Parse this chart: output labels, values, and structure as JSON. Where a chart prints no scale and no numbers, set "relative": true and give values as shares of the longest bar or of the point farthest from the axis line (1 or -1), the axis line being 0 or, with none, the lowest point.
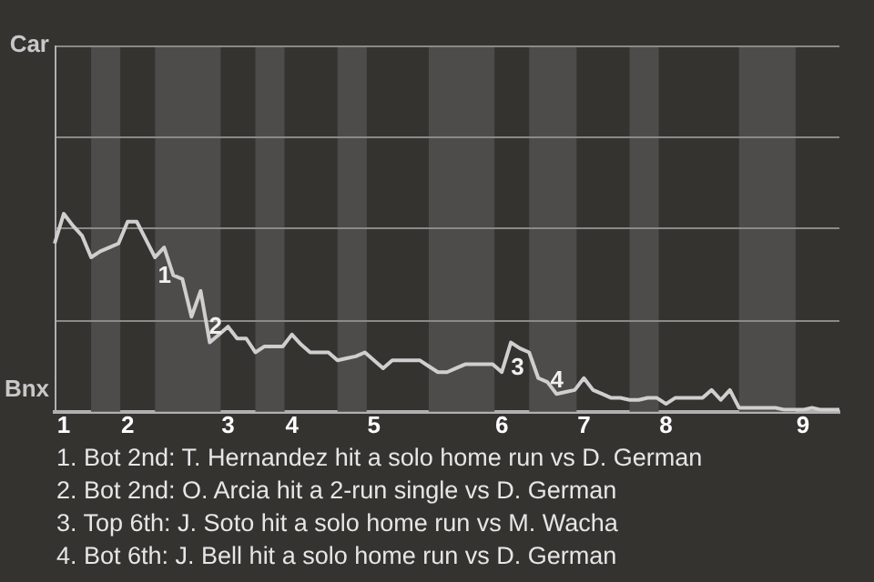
{
  "chart_data": {
    "type": "line",
    "color": "#cfcfcf",
    "marker": "none",
    "relative": true,
    "ref_lines": [
      {
        "axis": "y",
        "value": 0.46,
        "color": "#8a8a88"
      },
      {
        "axis": "y",
        "value": 0.93,
        "color": "#8a8a88"
      },
      {
        "axis": "y",
        "value": 1.39,
        "color": "#8a8a88"
      },
      {
        "axis": "y",
        "value": 1.85,
        "color": "#8a8a88"
      }
    ],
    "categories": [
      null,
      "1",
      null,
      null,
      null,
      null,
      null,
      null,
      "2",
      null,
      null,
      null,
      null,
      null,
      null,
      null,
      null,
      null,
      null,
      "3",
      null,
      null,
      null,
      null,
      null,
      null,
      "4",
      null,
      null,
      null,
      null,
      null,
      null,
      null,
      null,
      "5",
      null,
      null,
      null,
      null,
      null,
      null,
      null,
      null,
      null,
      null,
      null,
      null,
      null,
      "6",
      null,
      null,
      null,
      null,
      null,
      null,
      null,
      null,
      "7",
      null,
      null,
      null,
      null,
      null,
      null,
      null,
      null,
      "8",
      null,
      null,
      null,
      null,
      null,
      null,
      null,
      null,
      null,
      null,
      null,
      null,
      null,
      null,
      "9",
      null,
      null,
      null,
      null
    ],
    "values": [
      0.85,
      1,
      0.94,
      0.89,
      0.78,
      0.81,
      0.83,
      0.85,
      0.96,
      0.96,
      0.87,
      0.78,
      0.83,
      0.69,
      0.67,
      0.48,
      0.61,
      0.35,
      0.39,
      0.43,
      0.37,
      0.37,
      0.3,
      0.33,
      0.33,
      0.33,
      0.39,
      0.34,
      0.3,
      0.3,
      0.3,
      0.26,
      0.27,
      0.28,
      0.3,
      0.26,
      0.22,
      0.26,
      0.26,
      0.26,
      0.26,
      0.23,
      0.2,
      0.2,
      0.22,
      0.24,
      0.24,
      0.24,
      0.24,
      0.2,
      0.35,
      0.32,
      0.3,
      0.17,
      0.15,
      0.09,
      0.1,
      0.11,
      0.17,
      0.11,
      0.09,
      0.07,
      0.07,
      0.06,
      0.06,
      0.07,
      0.07,
      0.04,
      0.07,
      0.07,
      0.07,
      0.07,
      0.11,
      0.06,
      0.11,
      0.02,
      0.02,
      0.02,
      0.02,
      0.02,
      0.01,
      0.01,
      0.01,
      0.02,
      0.01,
      0.01,
      0.01
    ],
    "annotations": [
      "Car",
      "Bnx",
      "1",
      "2",
      "3",
      "4",
      "1. Bot 2nd: T. Hernandez hit a solo home run vs D. German",
      "2. Bot 2nd: O. Arcia hit a 2-run single vs D. German",
      "3. Top 6th: J. Soto hit a solo home run vs M. Wacha",
      "4. Bot 6th: J. Bell hit a solo home run vs D. German"
    ]
  }
}
